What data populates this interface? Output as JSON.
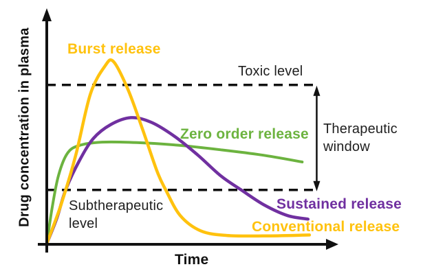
{
  "figure": {
    "y_axis_label": "Drug concentration in plasma",
    "x_axis_label": "Time"
  },
  "labels": {
    "burst": "Burst release",
    "zero_order": "Zero order release",
    "sustained": "Sustained release",
    "conventional": "Conventional release",
    "toxic": "Toxic level",
    "therapeutic_line1": "Therapeutic",
    "therapeutic_line2": "window",
    "subtherapeutic_line1": "Subtherapeutic",
    "subtherapeutic_line2": "level"
  },
  "colors": {
    "burst": "#FFC20E",
    "zero_order": "#6CB33F",
    "sustained": "#7030A0",
    "conventional": "#FFC20E",
    "axis": "#111111",
    "text": "#1E1E1E"
  },
  "chart_data": {
    "type": "line",
    "title": "",
    "xlabel": "Time",
    "ylabel": "Drug concentration in plasma",
    "xlim": [
      0,
      10
    ],
    "ylim": [
      0,
      10
    ],
    "grid": false,
    "axis_ticks": "none (qualitative sketch, unlabeled axes)",
    "legend_position": "inline curve labels",
    "thresholds": [
      {
        "name": "Toxic level",
        "value": 6.8,
        "style": "dashed"
      },
      {
        "name": "Subtherapeutic level",
        "value": 2.3,
        "style": "dashed"
      }
    ],
    "annotations": [
      {
        "name": "Therapeutic window",
        "type": "double-arrow",
        "x": 9.3,
        "from": 2.3,
        "to": 6.8
      }
    ],
    "series": [
      {
        "name": "Burst release (conventional release)",
        "color": "#FFC20E",
        "points": [
          [
            0,
            0
          ],
          [
            0.5,
            1.7
          ],
          [
            1,
            3.8
          ],
          [
            1.5,
            6.4
          ],
          [
            2,
            7.6
          ],
          [
            2.3,
            7.8
          ],
          [
            2.8,
            6.6
          ],
          [
            3.3,
            4.9
          ],
          [
            3.8,
            3.1
          ],
          [
            4.1,
            2.3
          ],
          [
            4.6,
            1.2
          ],
          [
            5.3,
            0.55
          ],
          [
            6.2,
            0.35
          ],
          [
            7.5,
            0.33
          ],
          [
            9.05,
            0.37
          ]
        ]
      },
      {
        "name": "Sustained release",
        "color": "#7030A0",
        "points": [
          [
            0,
            0
          ],
          [
            0.35,
            1.1
          ],
          [
            0.65,
            2.3
          ],
          [
            1.1,
            3.5
          ],
          [
            1.6,
            4.5
          ],
          [
            2.2,
            5.1
          ],
          [
            2.9,
            5.4
          ],
          [
            3.6,
            5.2
          ],
          [
            4.4,
            4.6
          ],
          [
            5.2,
            3.8
          ],
          [
            6,
            2.9
          ],
          [
            6.7,
            2.3
          ],
          [
            7.5,
            1.65
          ],
          [
            8.3,
            1.2
          ],
          [
            9,
            1.05
          ]
        ]
      },
      {
        "name": "Zero order release",
        "color": "#6CB33F",
        "points": [
          [
            0,
            0
          ],
          [
            0.18,
            1.5
          ],
          [
            0.4,
            2.9
          ],
          [
            0.7,
            3.85
          ],
          [
            1.1,
            4.2
          ],
          [
            1.9,
            4.35
          ],
          [
            3.1,
            4.33
          ],
          [
            4.5,
            4.22
          ],
          [
            6,
            4.02
          ],
          [
            7.4,
            3.8
          ],
          [
            8.8,
            3.5
          ]
        ]
      }
    ]
  }
}
